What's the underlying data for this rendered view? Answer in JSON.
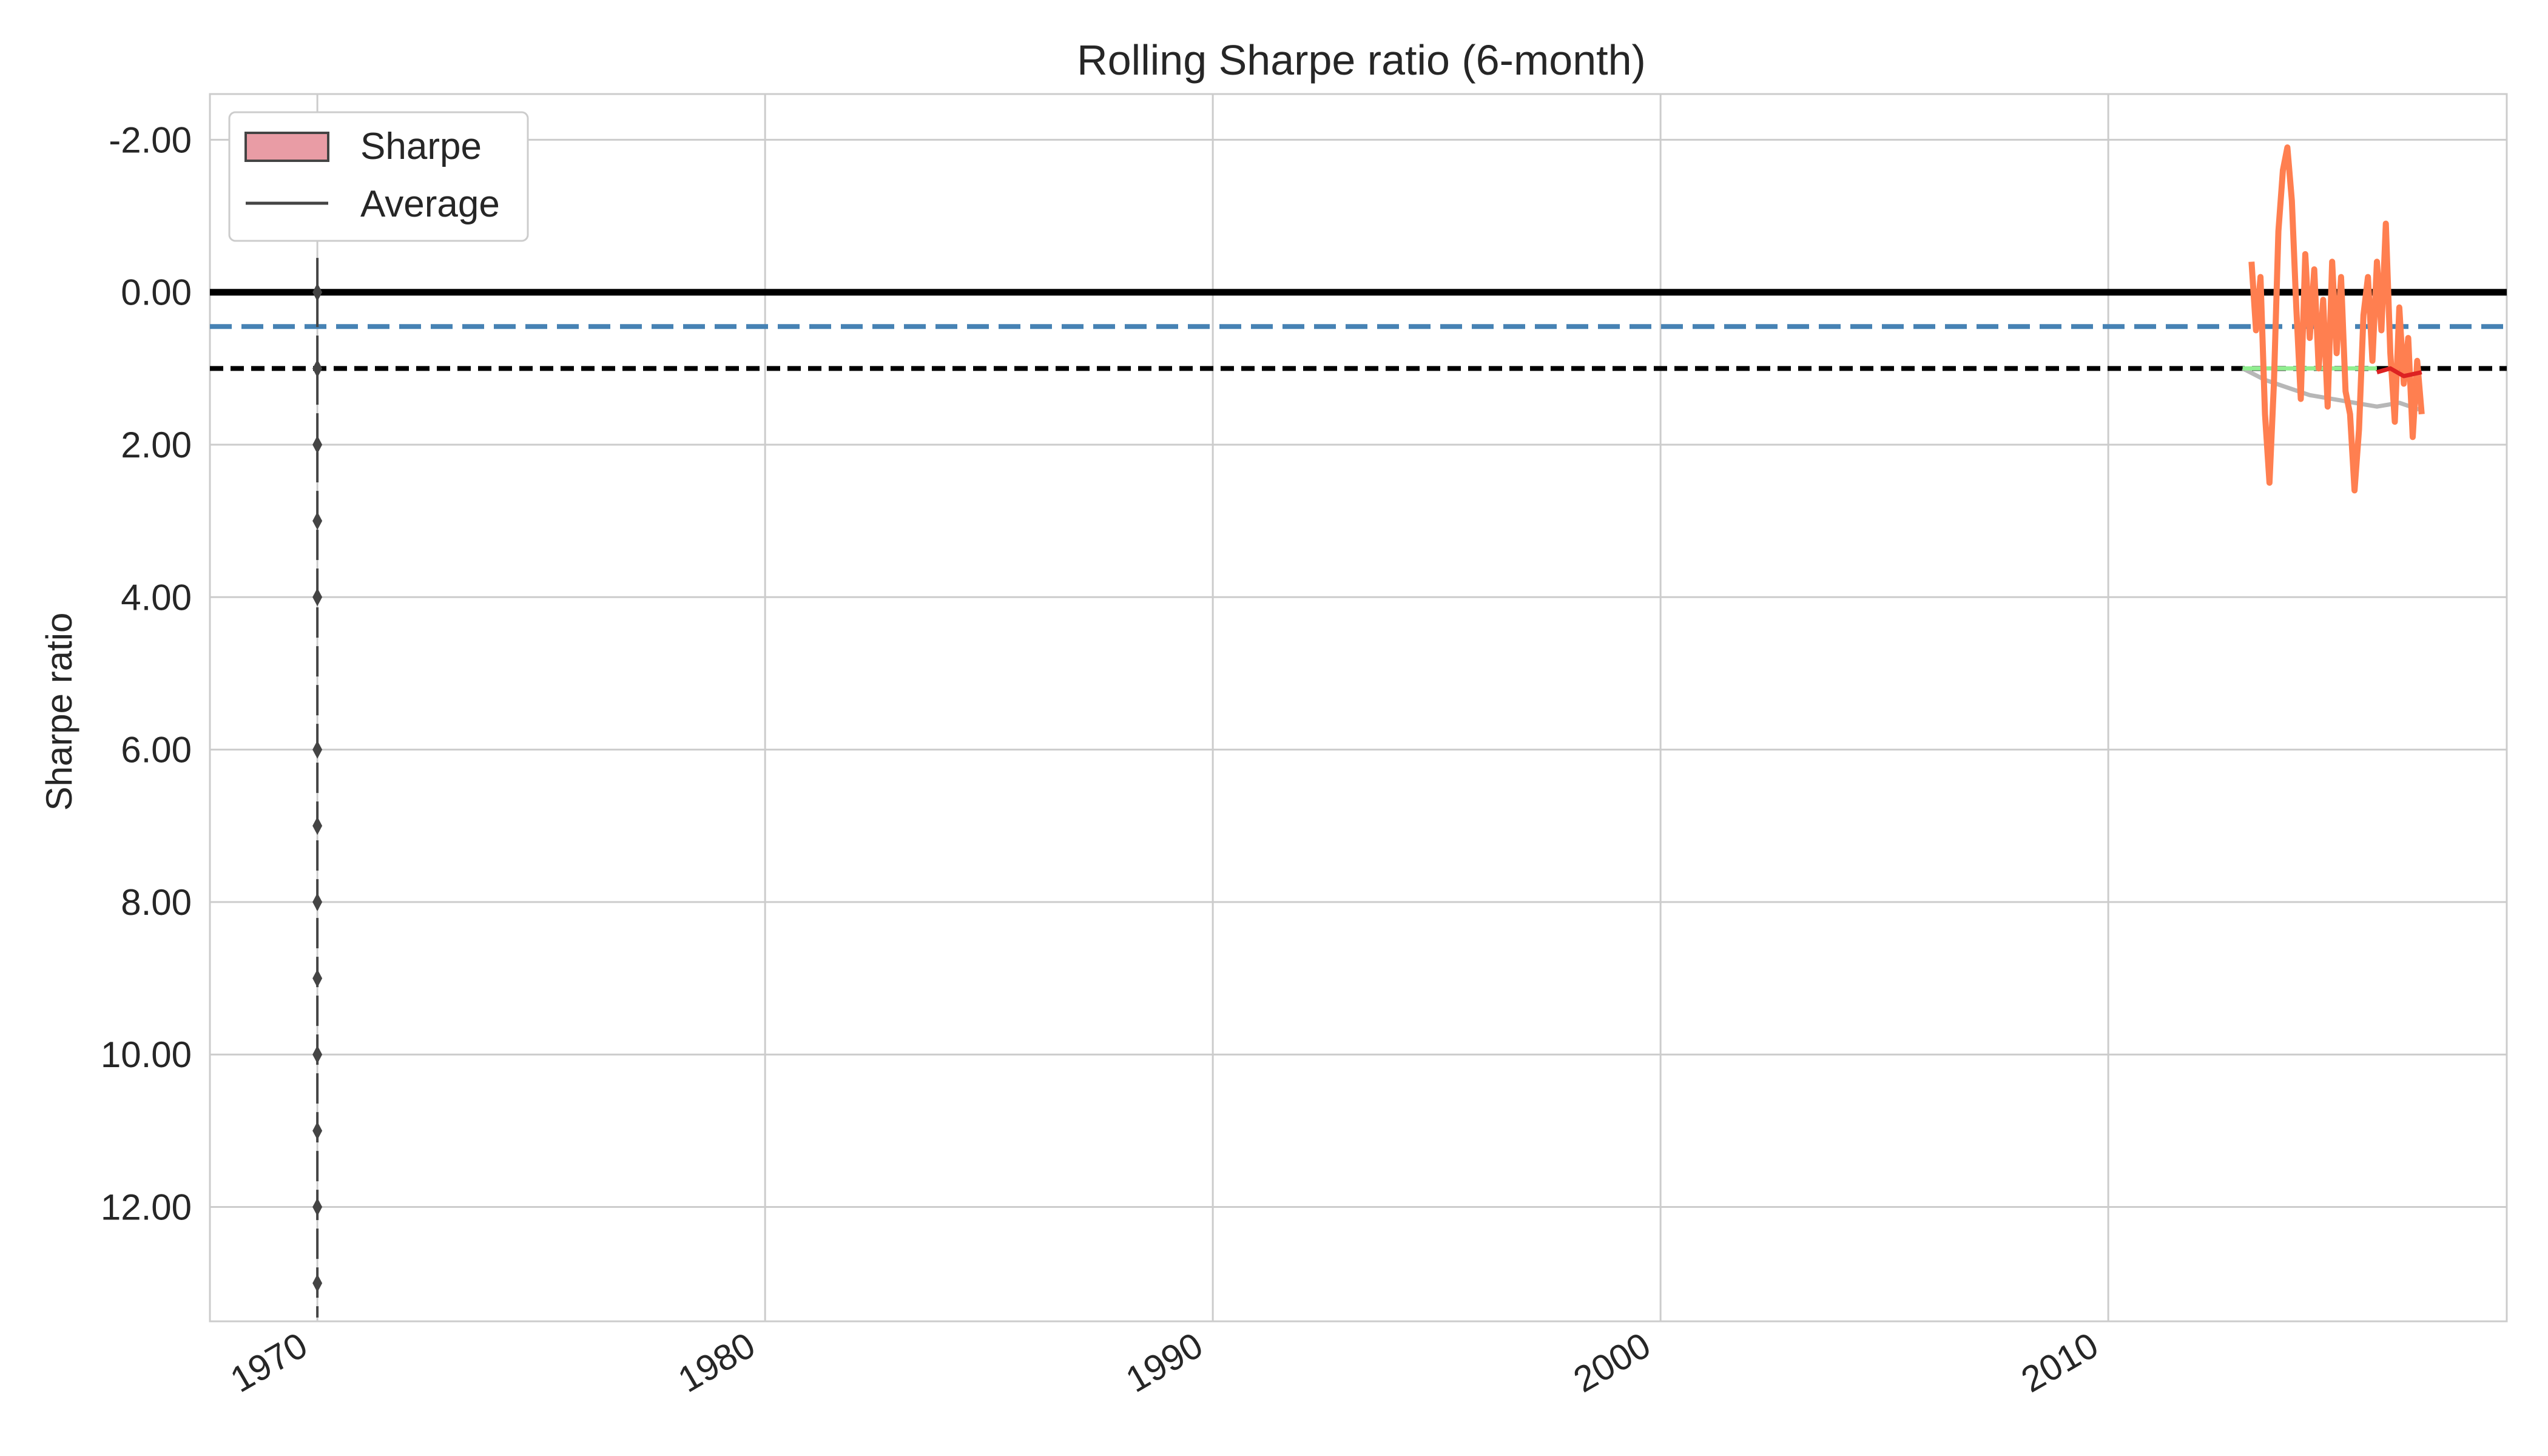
{
  "chart_data": {
    "type": "line",
    "title": "Rolling Sharpe ratio (6-month)",
    "xlabel": "",
    "ylabel": "Sharpe ratio",
    "y_inverted": true,
    "xlim": [
      1967.6,
      2018.9
    ],
    "ylim": [
      13.5,
      -2.6
    ],
    "x_ticks": [
      1970,
      1980,
      1990,
      2000,
      2010
    ],
    "x_tick_labels": [
      "1970",
      "1980",
      "1990",
      "2000",
      "2010"
    ],
    "y_ticks": [
      -2,
      0,
      2,
      4,
      6,
      8,
      10,
      12
    ],
    "y_tick_labels": [
      "-2.00",
      "0.00",
      "2.00",
      "4.00",
      "6.00",
      "8.00",
      "10.00",
      "12.00"
    ],
    "grid": true,
    "legend": {
      "position": "upper-left",
      "entries": [
        {
          "label": "Sharpe",
          "kind": "patch",
          "color": "#e99ca5"
        },
        {
          "label": "Average",
          "kind": "line",
          "color": "#444444"
        }
      ]
    },
    "hlines": [
      {
        "y": 0.0,
        "style": "solid",
        "color": "#000000"
      },
      {
        "y": 0.45,
        "style": "dashed",
        "color": "#4682b4"
      },
      {
        "y": 1.0,
        "style": "dashed",
        "color": "#000000"
      }
    ],
    "vertical_markers": {
      "x": 1970,
      "color": "#444444",
      "y_points": [
        0,
        1,
        2,
        3,
        4,
        6,
        7,
        8,
        9,
        10,
        11,
        12,
        13
      ]
    },
    "series": [
      {
        "color": "#ff7f50",
        "x": [
          2013.2,
          2013.3,
          2013.4,
          2013.5,
          2013.6,
          2013.7,
          2013.8,
          2013.9,
          2014.0,
          2014.1,
          2014.2,
          2014.3,
          2014.4,
          2014.5,
          2014.6,
          2014.7,
          2014.8,
          2014.9,
          2015.0,
          2015.1,
          2015.2,
          2015.3,
          2015.4,
          2015.5,
          2015.6,
          2015.7,
          2015.8,
          2015.9,
          2016.0,
          2016.1,
          2016.2,
          2016.3,
          2016.4,
          2016.5,
          2016.6,
          2016.7,
          2016.8,
          2016.9,
          2017.0
        ],
        "y": [
          -0.4,
          0.5,
          -0.2,
          1.6,
          2.5,
          1.2,
          -0.8,
          -1.6,
          -1.9,
          -1.2,
          0.2,
          1.4,
          -0.5,
          0.6,
          -0.3,
          1.0,
          0.1,
          1.5,
          -0.4,
          0.8,
          -0.2,
          1.3,
          1.6,
          2.6,
          1.8,
          0.3,
          -0.2,
          0.9,
          -0.4,
          0.5,
          -0.9,
          0.8,
          1.7,
          0.2,
          1.2,
          0.6,
          1.9,
          0.9,
          1.6
        ]
      },
      {
        "color": "#aaaaaa",
        "x": [
          2013.0,
          2013.5,
          2014.0,
          2014.5,
          2015.0,
          2015.5,
          2016.0,
          2016.5,
          2017.0
        ],
        "y": [
          1.0,
          1.15,
          1.25,
          1.35,
          1.4,
          1.45,
          1.5,
          1.45,
          1.55
        ]
      },
      {
        "color": "#90ee90",
        "x": [
          2013.0,
          2013.5,
          2014.0,
          2014.5,
          2015.0,
          2015.5,
          2016.0
        ],
        "y": [
          1.0,
          1.0,
          1.0,
          1.0,
          1.0,
          1.0,
          1.0
        ]
      },
      {
        "color": "#dd2222",
        "x": [
          2016.0,
          2016.3,
          2016.6,
          2017.0
        ],
        "y": [
          1.05,
          1.0,
          1.1,
          1.05
        ]
      }
    ]
  }
}
